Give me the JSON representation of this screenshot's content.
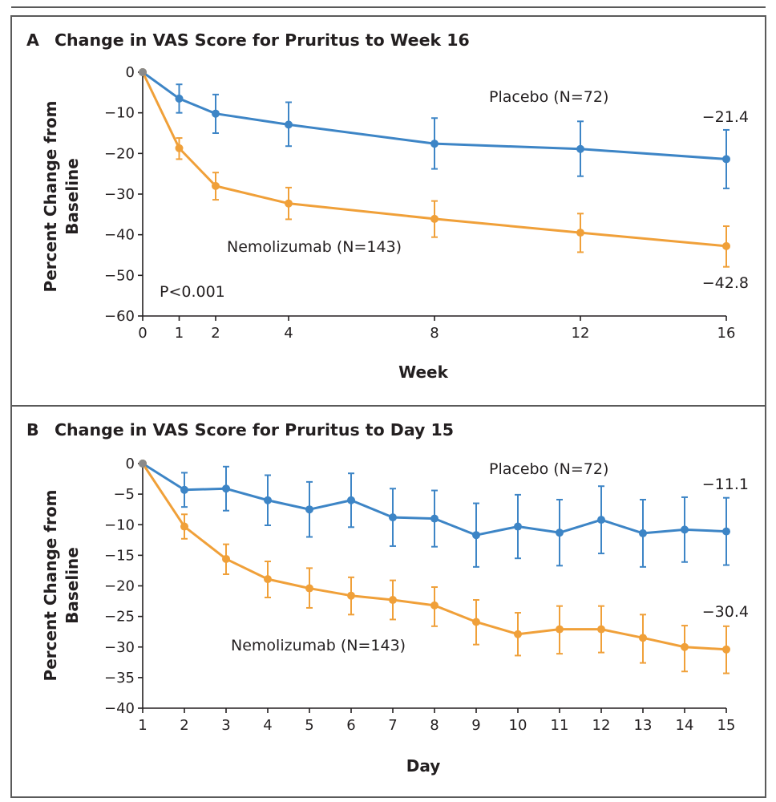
{
  "chart_data": [
    {
      "type": "line",
      "panel_letter": "A",
      "title": "Change in VAS Score for Pruritus to Week 16",
      "xlabel": "Week",
      "ylabel_lines": [
        "Percent Change from",
        "Baseline"
      ],
      "x": [
        0,
        1,
        2,
        4,
        8,
        12,
        16
      ],
      "xticks": [
        0,
        1,
        2,
        4,
        8,
        12,
        16
      ],
      "xlim": [
        0,
        16
      ],
      "ylim": [
        -60,
        0
      ],
      "yticks": [
        0,
        -10,
        -20,
        -30,
        -40,
        -50,
        -60
      ],
      "ytick_labels": [
        "0",
        "−10",
        "−20",
        "−30",
        "−40",
        "−50",
        "−60"
      ],
      "grid": false,
      "series": [
        {
          "name": "Placebo (N=72)",
          "color": "#3d85c6",
          "values": [
            0,
            -6.5,
            -10.2,
            -12.9,
            -17.6,
            -18.9,
            -21.4
          ],
          "error_low": [
            0,
            -10.0,
            -15.0,
            -18.2,
            -23.8,
            -25.6,
            -28.6
          ],
          "error_high": [
            0,
            -3.0,
            -5.5,
            -7.4,
            -11.3,
            -12.1,
            -14.2
          ]
        },
        {
          "name": "Nemolizumab (N=143)",
          "color": "#f0a039",
          "values": [
            0,
            -18.7,
            -28.0,
            -32.3,
            -36.1,
            -39.5,
            -42.8
          ],
          "error_low": [
            0,
            -21.4,
            -31.4,
            -36.2,
            -40.6,
            -44.3,
            -47.9
          ],
          "error_high": [
            0,
            -16.2,
            -24.7,
            -28.4,
            -31.7,
            -34.8,
            -37.9
          ]
        }
      ],
      "annotations": {
        "placebo_label": "Placebo (N=72)",
        "nemo_label": "Nemolizumab (N=143)",
        "placebo_end": "−21.4",
        "nemo_end": "−42.8",
        "pvalue": "P<0.001"
      }
    },
    {
      "type": "line",
      "panel_letter": "B",
      "title": "Change in VAS Score for Pruritus to Day 15",
      "xlabel": "Day",
      "ylabel_lines": [
        "Percent Change from",
        "Baseline"
      ],
      "x": [
        1,
        2,
        3,
        4,
        5,
        6,
        7,
        8,
        9,
        10,
        11,
        12,
        13,
        14,
        15
      ],
      "xticks": [
        1,
        2,
        3,
        4,
        5,
        6,
        7,
        8,
        9,
        10,
        11,
        12,
        13,
        14,
        15
      ],
      "xlim": [
        1,
        15
      ],
      "ylim": [
        -40,
        0
      ],
      "yticks": [
        0,
        -5,
        -10,
        -15,
        -20,
        -25,
        -30,
        -35,
        -40
      ],
      "ytick_labels": [
        "0",
        "−5",
        "−10",
        "−15",
        "−20",
        "−25",
        "−30",
        "−35",
        "−40"
      ],
      "grid": false,
      "series": [
        {
          "name": "Placebo (N=72)",
          "color": "#3d85c6",
          "values": [
            0,
            -4.3,
            -4.1,
            -6.0,
            -7.5,
            -6.0,
            -8.8,
            -9.0,
            -11.7,
            -10.3,
            -11.3,
            -9.2,
            -11.4,
            -10.8,
            -11.1
          ],
          "error_low": [
            0,
            -7.1,
            -7.7,
            -10.1,
            -12.0,
            -10.4,
            -13.5,
            -13.6,
            -16.9,
            -15.5,
            -16.7,
            -14.7,
            -16.9,
            -16.1,
            -16.6
          ],
          "error_high": [
            0,
            -1.5,
            -0.5,
            -1.9,
            -3.0,
            -1.6,
            -4.1,
            -4.4,
            -6.5,
            -5.1,
            -5.9,
            -3.7,
            -5.9,
            -5.5,
            -5.6
          ]
        },
        {
          "name": "Nemolizumab (N=143)",
          "color": "#f0a039",
          "values": [
            0,
            -10.3,
            -15.6,
            -18.9,
            -20.4,
            -21.6,
            -22.3,
            -23.2,
            -25.9,
            -27.9,
            -27.1,
            -27.1,
            -28.5,
            -30.0,
            -30.4
          ],
          "error_low": [
            0,
            -12.3,
            -18.1,
            -21.9,
            -23.6,
            -24.7,
            -25.5,
            -26.6,
            -29.6,
            -31.4,
            -31.1,
            -30.9,
            -32.6,
            -34.0,
            -34.3
          ],
          "error_high": [
            0,
            -8.3,
            -13.2,
            -16.0,
            -17.1,
            -18.6,
            -19.1,
            -20.2,
            -22.3,
            -24.4,
            -23.3,
            -23.3,
            -24.7,
            -26.5,
            -26.6
          ]
        }
      ],
      "annotations": {
        "placebo_label": "Placebo (N=72)",
        "nemo_label": "Nemolizumab (N=143)",
        "placebo_end": "−11.1",
        "nemo_end": "−30.4"
      }
    }
  ]
}
